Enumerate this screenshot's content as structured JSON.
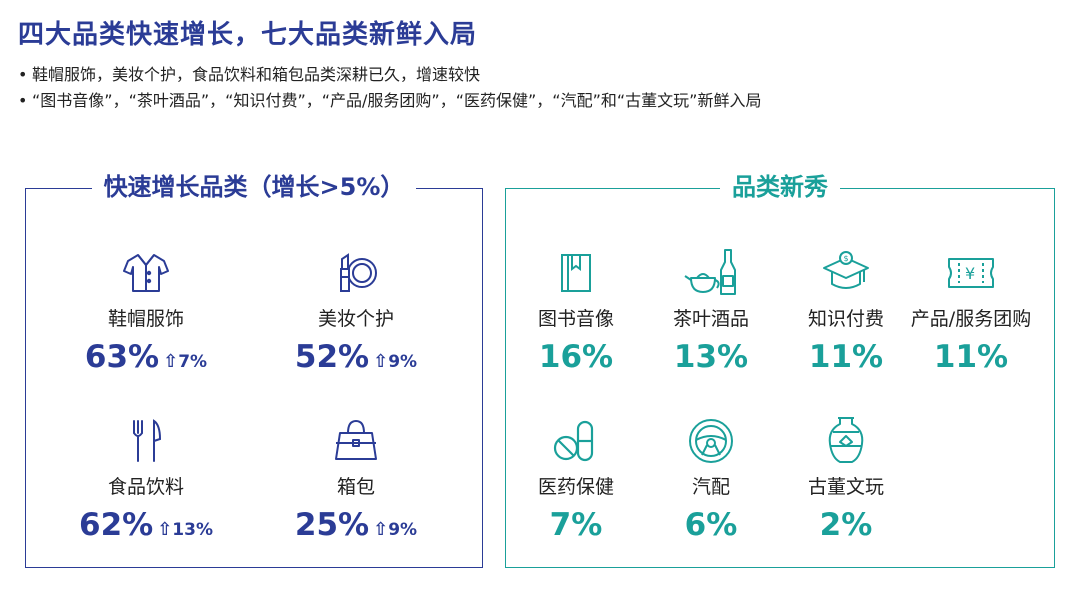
{
  "title": "四大品类快速增长，七大品类新鲜入局",
  "bullets": [
    "鞋帽服饰，美妆个护，食品饮料和箱包品类深耕已久，增速较快",
    "“图书音像”，“茶叶酒品”，“知识付费”，“产品/服务团购”，“医药保健”，“汽配”和“古董文玩”新鲜入局"
  ],
  "colors": {
    "blue": "#2b3c96",
    "teal": "#1aa09a"
  },
  "fast_growth": {
    "title": "快速增长品类（增长>5%）",
    "items": [
      {
        "name": "鞋帽服饰",
        "value": "63%",
        "growth": "7%",
        "icon": "shirt-icon"
      },
      {
        "name": "美妆个护",
        "value": "52%",
        "growth": "9%",
        "icon": "makeup-icon"
      },
      {
        "name": "食品饮料",
        "value": "62%",
        "growth": "13%",
        "icon": "cutlery-icon"
      },
      {
        "name": "箱包",
        "value": "25%",
        "growth": "9%",
        "icon": "handbag-icon"
      }
    ]
  },
  "new_categories": {
    "title": "品类新秀",
    "items": [
      {
        "name": "图书音像",
        "value": "16%",
        "icon": "book-icon"
      },
      {
        "name": "茶叶酒品",
        "value": "13%",
        "icon": "teapot-bottle-icon"
      },
      {
        "name": "知识付费",
        "value": "11%",
        "icon": "graduation-cap-icon"
      },
      {
        "name": "产品/服务团购",
        "value": "11%",
        "icon": "coupon-icon"
      },
      {
        "name": "医药保健",
        "value": "7%",
        "icon": "pills-icon"
      },
      {
        "name": "汽配",
        "value": "6%",
        "icon": "steering-wheel-icon"
      },
      {
        "name": "古董文玩",
        "value": "2%",
        "icon": "vase-icon"
      }
    ]
  }
}
